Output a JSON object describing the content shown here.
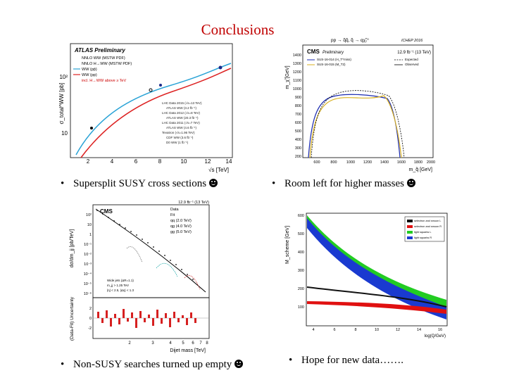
{
  "slide": {
    "title": "Conclusions",
    "bullets": [
      "Supersplit SUSY cross sections",
      "Room left for higher masses",
      "Non-SUSY searches turned up empty",
      "Hope for new data……."
    ]
  },
  "fig_ww": {
    "brand": "ATLAS Preliminary",
    "ylabel": "σ_total^WW [pb]",
    "xlabel": "√s [TeV]",
    "xticks": [
      "2",
      "4",
      "6",
      "8",
      "10",
      "12",
      "14"
    ],
    "yticks": [
      "10²",
      "10"
    ],
    "legend": [
      "NNLO WW (MSTW PDF)",
      "NNLO H→WW (MSTW PDF)",
      "WW (pp̄)",
      "WW (pp)",
      "incl. H→WW above ≥ TeV"
    ],
    "data_legend": [
      "LHC Data 2015 (√s=13 TeV)",
      "ATLAS WW (3.2 fb⁻¹)",
      "LHC Data 2012 (√s=8 TeV)",
      "ATLAS WW (20.3 fb⁻¹)",
      "LHC Data 2011 (√s=7 TeV)",
      "ATLAS WW (4.6 fb⁻¹)",
      "Tevatron (√s=1.96 TeV)",
      "CDF WW (3.6 fb⁻¹)",
      "D0 WW (1 fb⁻¹)"
    ]
  },
  "fig_susy": {
    "header": "pp → q̃q̃, q̃ → qχ̃₁⁰",
    "conf": "ICHEP 2016",
    "brand": "CMS",
    "brand_sub": "Preliminary",
    "lumi": "12.9 fb⁻¹ (13 TeV)",
    "ylabel": "m_χ̃ [GeV]",
    "xlabel": "m_q̃ [GeV]",
    "yticks": [
      "1400",
      "1300",
      "1200",
      "1100",
      "1000",
      "900",
      "800",
      "700",
      "600",
      "500",
      "400",
      "300",
      "200"
    ],
    "xticks": [
      "600",
      "800",
      "1000",
      "1200",
      "1400",
      "1600",
      "1800",
      "2000"
    ],
    "legend": [
      "SUS-16-014 (H_T^miss)",
      "SUS-16-015 (M_T2)",
      "Expected",
      "Observed"
    ]
  },
  "fig_dijet": {
    "brand": "CMS",
    "lumi": "12.9 fb⁻¹ (13 TeV)",
    "ylabel": "dσ/dm_jj [pb/TeV]",
    "ylabel2": "(Data-Fit) Uncertainty",
    "xlabel": "Dijet mass [TeV]",
    "yticks": [
      "10²",
      "10",
      "1",
      "10⁻¹",
      "10⁻²",
      "10⁻³",
      "10⁻⁴",
      "10⁻⁵",
      "10⁻⁶"
    ],
    "ratio_yticks": [
      "2",
      "0",
      "-2"
    ],
    "xticks": [
      "2",
      "3",
      "4",
      "5",
      "6",
      "7",
      "8"
    ],
    "legend": [
      "Data",
      "Fit",
      "qq (2.0 TeV)",
      "qg (4.0 TeV)",
      "gg (5.0 TeV)"
    ],
    "note": [
      "Wide jets (ΔR=1.1)",
      "m_jj > 1.25 TeV",
      "|η| < 2.5, |Δη| < 1.3"
    ]
  },
  "fig_mass": {
    "ylabel": "M_scheme [GeV]",
    "xlabel": "log(Q/GeV)",
    "yticks": [
      "600",
      "500",
      "400",
      "300",
      "200",
      "100"
    ],
    "xticks": [
      "4",
      "6",
      "8",
      "10",
      "12",
      "14",
      "16"
    ],
    "legend": [
      "selectron and smuon L",
      "selectron and smuon R",
      "light squarks L",
      "light squarks R"
    ]
  }
}
